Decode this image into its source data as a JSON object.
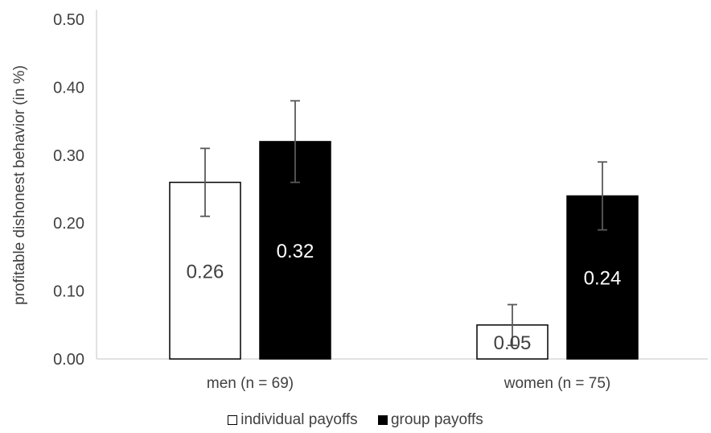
{
  "chart_data": {
    "type": "bar",
    "title": "",
    "xlabel": "",
    "ylabel": "profitable dishonest behavior (in %)",
    "ylim": [
      0,
      0.5
    ],
    "yticks": [
      0,
      0.1,
      0.2,
      0.3,
      0.4,
      0.5
    ],
    "ytick_labels": [
      "0.00",
      "0.10",
      "0.20",
      "0.30",
      "0.40",
      "0.50"
    ],
    "categories": [
      "men (n = 69)",
      "women (n = 75)"
    ],
    "series": [
      {
        "name": "individual payoffs",
        "color": "#ffffff",
        "stroke": "#000000",
        "label_color": "#404040",
        "values": [
          0.26,
          0.05
        ],
        "error_low": [
          0.21,
          0.02
        ],
        "error_high": [
          0.31,
          0.08
        ],
        "data_labels": [
          "0.26",
          "0.05"
        ]
      },
      {
        "name": "group payoffs",
        "color": "#000000",
        "stroke": "#000000",
        "label_color": "#ffffff",
        "values": [
          0.32,
          0.24
        ],
        "error_low": [
          0.26,
          0.19
        ],
        "error_high": [
          0.38,
          0.29
        ],
        "data_labels": [
          "0.32",
          "0.24"
        ]
      }
    ],
    "grid": false,
    "legend_position": "bottom"
  }
}
